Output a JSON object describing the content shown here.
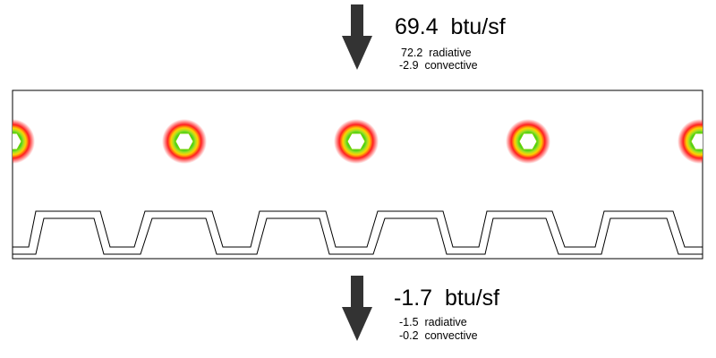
{
  "top_flux": {
    "total": "69.4  btu/sf",
    "radiative": "72.2  radiative",
    "convective": "-2.9  convective"
  },
  "bottom_flux": {
    "total": "-1.7  btu/sf",
    "radiative": "-1.5  radiative",
    "convective": "-0.2  convective"
  },
  "colors": {
    "arrow": "#333333",
    "outline": "#000000",
    "hot_outer": "#ff2020",
    "hot_mid": "#ffd000",
    "hot_inner": "#22cc22"
  },
  "icons": {
    "top": "down-arrow-icon",
    "bottom": "down-arrow-icon"
  }
}
